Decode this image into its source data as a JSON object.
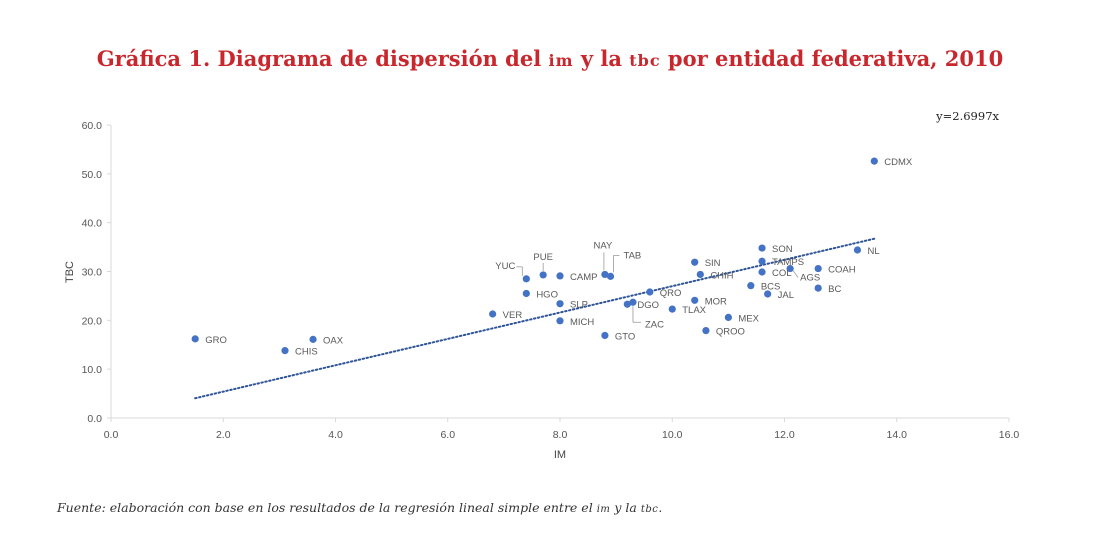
{
  "title": {
    "prefix": "Gráfica 1. Diagrama de dispersión del ",
    "im": "im",
    "middle": " y la ",
    "tbc": "tbc",
    "suffix": " por entidad federativa, 2010"
  },
  "source": {
    "prefix": "Fuente: elaboración con base en los resultados de la regresión lineal simple entre el ",
    "im": "im",
    "middle": " y la ",
    "tbc": "tbc",
    "suffix": "."
  },
  "chart_data": {
    "type": "scatter",
    "xlabel": "IM",
    "ylabel": "TBC",
    "xlim": [
      0,
      16
    ],
    "ylim": [
      0,
      60
    ],
    "x_ticks": [
      "0.0",
      "2.0",
      "4.0",
      "6.0",
      "8.0",
      "10.0",
      "12.0",
      "14.0",
      "16.0"
    ],
    "y_ticks": [
      "0.0",
      "10.0",
      "20.0",
      "30.0",
      "40.0",
      "50.0",
      "60.0"
    ],
    "trendline": {
      "equation": "y=2.6997x",
      "slope": 2.6997,
      "x_range": [
        1.5,
        13.6
      ],
      "style": "dotted"
    },
    "marker_color": "#4472c4",
    "points": [
      {
        "label": "GRO",
        "x": 1.5,
        "y": 16.2
      },
      {
        "label": "CHIS",
        "x": 3.1,
        "y": 13.8
      },
      {
        "label": "OAX",
        "x": 3.6,
        "y": 16.1
      },
      {
        "label": "VER",
        "x": 6.8,
        "y": 21.3
      },
      {
        "label": "YUC",
        "x": 7.4,
        "y": 28.5
      },
      {
        "label": "HGO",
        "x": 7.4,
        "y": 25.5
      },
      {
        "label": "PUE",
        "x": 7.7,
        "y": 29.3
      },
      {
        "label": "CAMP",
        "x": 8.0,
        "y": 29.1
      },
      {
        "label": "SLP",
        "x": 8.0,
        "y": 23.4
      },
      {
        "label": "MICH",
        "x": 8.0,
        "y": 19.9
      },
      {
        "label": "NAY",
        "x": 8.8,
        "y": 29.4
      },
      {
        "label": "TAB",
        "x": 8.9,
        "y": 29.0
      },
      {
        "label": "GTO",
        "x": 8.8,
        "y": 16.9
      },
      {
        "label": "DGO",
        "x": 9.2,
        "y": 23.3
      },
      {
        "label": "ZAC",
        "x": 9.3,
        "y": 23.7
      },
      {
        "label": "QRO",
        "x": 9.6,
        "y": 25.8
      },
      {
        "label": "TLAX",
        "x": 10.0,
        "y": 22.3
      },
      {
        "label": "SIN",
        "x": 10.4,
        "y": 31.9
      },
      {
        "label": "CHIH",
        "x": 10.5,
        "y": 29.4
      },
      {
        "label": "MOR",
        "x": 10.4,
        "y": 24.1
      },
      {
        "label": "QROO",
        "x": 10.6,
        "y": 17.9
      },
      {
        "label": "MEX",
        "x": 11.0,
        "y": 20.6
      },
      {
        "label": "BCS",
        "x": 11.4,
        "y": 27.1
      },
      {
        "label": "SON",
        "x": 11.6,
        "y": 34.8
      },
      {
        "label": "TAMPS",
        "x": 11.6,
        "y": 32.1
      },
      {
        "label": "COL",
        "x": 11.6,
        "y": 29.9
      },
      {
        "label": "AGS",
        "x": 12.1,
        "y": 30.6
      },
      {
        "label": "JAL",
        "x": 11.7,
        "y": 25.4
      },
      {
        "label": "COAH",
        "x": 12.6,
        "y": 30.6
      },
      {
        "label": "BC",
        "x": 12.6,
        "y": 26.6
      },
      {
        "label": "NL",
        "x": 13.3,
        "y": 34.4
      },
      {
        "label": "CDMX",
        "x": 13.6,
        "y": 52.6
      }
    ]
  }
}
